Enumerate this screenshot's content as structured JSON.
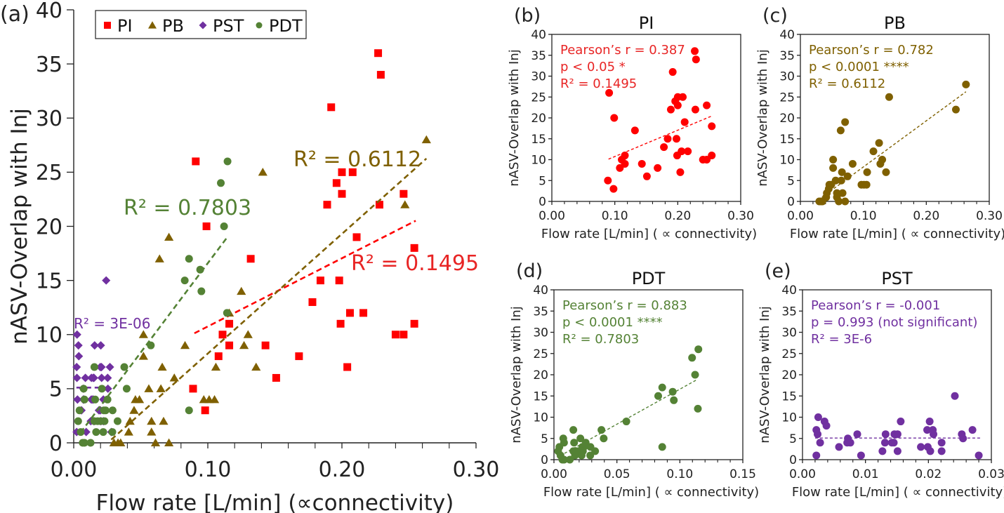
{
  "colors": {
    "PI": "#FF0000",
    "PI_text": "#E82525",
    "PB": "#7F6000",
    "PST": "#7030A0",
    "PDT": "#548235",
    "axis": "#222222"
  },
  "chart_data": [
    {
      "id": "a",
      "type": "scatter",
      "panel_label": "(a)",
      "title": "",
      "xlabel": "Flow rate [L/min] (∝connectivity)",
      "ylabel": "nASV-Overlap with Inj",
      "xlim": [
        0,
        0.3
      ],
      "ylim": [
        0,
        40
      ],
      "xticks": [
        0.0,
        0.1,
        0.2,
        0.3
      ],
      "xtick_labels": [
        "0.00",
        "0.10",
        "0.20",
        "0.30"
      ],
      "yticks": [
        0,
        5,
        10,
        15,
        20,
        25,
        30,
        35,
        40
      ],
      "ytick_labels": [
        "0",
        "5",
        "10",
        "15",
        "20",
        "25",
        "30",
        "35",
        "40"
      ],
      "grid": false,
      "legend": {
        "position": "top-left",
        "entries": [
          "PI",
          "PB",
          "PST",
          "PDT"
        ]
      },
      "series_refs": [
        "PI",
        "PB",
        "PST",
        "PDT"
      ],
      "annotations": [
        {
          "series": "PI",
          "text": "R² = 0.1495"
        },
        {
          "series": "PB",
          "text": "R² = 0.6112"
        },
        {
          "series": "PDT",
          "text": "R² = 0.7803"
        },
        {
          "series": "PST",
          "text": "R² = 3E-06"
        }
      ]
    },
    {
      "id": "b",
      "type": "scatter",
      "panel_label": "(b)",
      "title": "PI",
      "xlabel": "Flow rate [L/min] ( ∝ connectivity)",
      "ylabel": "nASV-Overlap with Inj",
      "xlim": [
        0,
        0.3
      ],
      "ylim": [
        0,
        40
      ],
      "xticks": [
        0.0,
        0.1,
        0.2,
        0.3
      ],
      "xtick_labels": [
        "0.00",
        "0.10",
        "0.20",
        "0.30"
      ],
      "yticks": [
        0,
        5,
        10,
        15,
        20,
        25,
        30,
        35,
        40
      ],
      "ytick_labels": [
        "0",
        "5",
        "10",
        "15",
        "20",
        "25",
        "30",
        "35",
        "40"
      ],
      "grid": false,
      "series_refs": [
        "PI"
      ],
      "stats": [
        "Pearson’s r = 0.387",
        "p < 0.05 *",
        "R² = 0.1495"
      ]
    },
    {
      "id": "c",
      "type": "scatter",
      "panel_label": "(c)",
      "title": "PB",
      "xlabel": "Flow rate [L/min] ( ∝ connectivity)",
      "ylabel": "nASV-Overlap with Inj",
      "xlim": [
        0,
        0.3
      ],
      "ylim": [
        0,
        40
      ],
      "xticks": [
        0.0,
        0.1,
        0.2,
        0.3
      ],
      "xtick_labels": [
        "0.00",
        "0.10",
        "0.20",
        "0.30"
      ],
      "yticks": [
        0,
        5,
        10,
        15,
        20,
        25,
        30,
        35,
        40
      ],
      "ytick_labels": [
        "0",
        "5",
        "10",
        "15",
        "20",
        "25",
        "30",
        "35",
        "40"
      ],
      "grid": false,
      "series_refs": [
        "PB"
      ],
      "stats": [
        "Pearson’s r = 0.782",
        "p < 0.0001 ****",
        "R² = 0.6112"
      ]
    },
    {
      "id": "d",
      "type": "scatter",
      "panel_label": "(d)",
      "title": "PDT",
      "xlabel": "Flow rate [L/min] ( ∝ connectivity)",
      "ylabel": "nASV-Overlap with Inj",
      "xlim": [
        0,
        0.15
      ],
      "ylim": [
        0,
        40
      ],
      "xticks": [
        0.0,
        0.05,
        0.1,
        0.15
      ],
      "xtick_labels": [
        "0.00",
        "0.05",
        "0.10",
        "0.15"
      ],
      "yticks": [
        0,
        5,
        10,
        15,
        20,
        25,
        30,
        35,
        40
      ],
      "ytick_labels": [
        "0",
        "5",
        "10",
        "15",
        "20",
        "25",
        "30",
        "35",
        "40"
      ],
      "grid": false,
      "series_refs": [
        "PDT"
      ],
      "stats": [
        "Pearson’s r = 0.883",
        "p < 0.0001 ****",
        "R² = 0.7803"
      ]
    },
    {
      "id": "e",
      "type": "scatter",
      "panel_label": "(e)",
      "title": "PST",
      "xlabel": "Flow rate [L/min] ( ∝ connectivity)",
      "ylabel": "nASV-Overlap with Inj",
      "xlim": [
        0,
        0.03
      ],
      "ylim": [
        0,
        40
      ],
      "xticks": [
        0.0,
        0.01,
        0.02,
        0.03
      ],
      "xtick_labels": [
        "0.00",
        "0.01",
        "0.02",
        "0.03"
      ],
      "yticks": [
        0,
        5,
        10,
        15,
        20,
        25,
        30,
        35,
        40
      ],
      "ytick_labels": [
        "0",
        "5",
        "10",
        "15",
        "20",
        "25",
        "30",
        "35",
        "40"
      ],
      "grid": false,
      "series_refs": [
        "PST"
      ],
      "stats": [
        "Pearson’s r = -0.001",
        "p = 0.993 (not significant)",
        "R² = 3E-6"
      ]
    }
  ],
  "series": {
    "PI": {
      "name": "PI",
      "marker": "square",
      "trend": {
        "slope": 63.0,
        "intercept": 4.45,
        "x_range": [
          0.09,
          0.255
        ],
        "r2": 0.1495
      },
      "points": [
        [
          0.089,
          5
        ],
        [
          0.098,
          3
        ],
        [
          0.091,
          26
        ],
        [
          0.099,
          20
        ],
        [
          0.108,
          8
        ],
        [
          0.111,
          10
        ],
        [
          0.116,
          11
        ],
        [
          0.116,
          9
        ],
        [
          0.132,
          17
        ],
        [
          0.143,
          9
        ],
        [
          0.151,
          6
        ],
        [
          0.168,
          8
        ],
        [
          0.178,
          13
        ],
        [
          0.184,
          15
        ],
        [
          0.189,
          22
        ],
        [
          0.192,
          31
        ],
        [
          0.196,
          24
        ],
        [
          0.198,
          15
        ],
        [
          0.199,
          11
        ],
        [
          0.2,
          25
        ],
        [
          0.2,
          23
        ],
        [
          0.206,
          12
        ],
        [
          0.204,
          7
        ],
        [
          0.208,
          25
        ],
        [
          0.211,
          19
        ],
        [
          0.216,
          12
        ],
        [
          0.227,
          36
        ],
        [
          0.229,
          34
        ],
        [
          0.228,
          22
        ],
        [
          0.24,
          10
        ],
        [
          0.246,
          10
        ],
        [
          0.246,
          23
        ],
        [
          0.254,
          18
        ],
        [
          0.254,
          11
        ]
      ]
    },
    "PB": {
      "name": "PB",
      "marker": "triangle",
      "trend": {
        "slope": 110.5,
        "intercept": -2.8,
        "x_range": [
          0.028,
          0.263
        ],
        "r2": 0.6112
      },
      "points": [
        [
          0.03,
          0
        ],
        [
          0.033,
          0
        ],
        [
          0.035,
          0
        ],
        [
          0.041,
          1
        ],
        [
          0.042,
          2
        ],
        [
          0.045,
          3
        ],
        [
          0.046,
          4
        ],
        [
          0.049,
          4
        ],
        [
          0.052,
          10
        ],
        [
          0.052,
          8
        ],
        [
          0.056,
          5
        ],
        [
          0.058,
          2
        ],
        [
          0.058,
          1
        ],
        [
          0.061,
          0
        ],
        [
          0.064,
          17
        ],
        [
          0.065,
          5
        ],
        [
          0.066,
          7
        ],
        [
          0.067,
          2
        ],
        [
          0.071,
          19
        ],
        [
          0.071,
          0
        ],
        [
          0.075,
          6
        ],
        [
          0.083,
          9
        ],
        [
          0.097,
          4
        ],
        [
          0.101,
          4
        ],
        [
          0.105,
          4
        ],
        [
          0.106,
          7
        ],
        [
          0.116,
          12
        ],
        [
          0.125,
          14
        ],
        [
          0.127,
          9
        ],
        [
          0.13,
          10
        ],
        [
          0.136,
          7
        ],
        [
          0.141,
          25
        ],
        [
          0.247,
          22
        ],
        [
          0.263,
          28
        ]
      ]
    },
    "PDT": {
      "name": "PDT",
      "marker": "circle",
      "trend": {
        "slope": 165.0,
        "intercept": 0.1,
        "x_range": [
          0.005,
          0.114
        ],
        "r2": 0.7803
      },
      "points": [
        [
          0.0033,
          2
        ],
        [
          0.0043,
          3
        ],
        [
          0.0074,
          5
        ],
        [
          0.008,
          4
        ],
        [
          0.0052,
          1
        ],
        [
          0.0067,
          0
        ],
        [
          0.008,
          0
        ],
        [
          0.0126,
          0
        ],
        [
          0.0154,
          7
        ],
        [
          0.016,
          4
        ],
        [
          0.0154,
          2
        ],
        [
          0.0167,
          1
        ],
        [
          0.0178,
          2
        ],
        [
          0.021,
          5
        ],
        [
          0.02,
          2
        ],
        [
          0.022,
          1
        ],
        [
          0.0225,
          3
        ],
        [
          0.0238,
          3
        ],
        [
          0.0252,
          4
        ],
        [
          0.023,
          2
        ],
        [
          0.029,
          3
        ],
        [
          0.0288,
          1
        ],
        [
          0.0327,
          2
        ],
        [
          0.0377,
          7
        ],
        [
          0.0395,
          5
        ],
        [
          0.0575,
          9
        ],
        [
          0.0828,
          15
        ],
        [
          0.086,
          17
        ],
        [
          0.086,
          3
        ],
        [
          0.0943,
          16
        ],
        [
          0.0952,
          14
        ],
        [
          0.1097,
          24
        ],
        [
          0.1121,
          20
        ],
        [
          0.1147,
          26
        ],
        [
          0.1143,
          12
        ]
      ]
    },
    "PST": {
      "name": "PST",
      "marker": "diamond",
      "trend": {
        "slope": 0.0,
        "intercept": 5.1,
        "x_range": [
          0.002,
          0.0285
        ],
        "r2": 3e-06
      },
      "points": [
        [
          0.0022,
          7
        ],
        [
          0.0024,
          6
        ],
        [
          0.0022,
          1
        ],
        [
          0.0025,
          10
        ],
        [
          0.0028,
          4
        ],
        [
          0.0035,
          9
        ],
        [
          0.0038,
          8
        ],
        [
          0.0058,
          3
        ],
        [
          0.0071,
          4
        ],
        [
          0.0072,
          5
        ],
        [
          0.0076,
          4
        ],
        [
          0.0087,
          6
        ],
        [
          0.0093,
          1
        ],
        [
          0.0127,
          2
        ],
        [
          0.0131,
          4
        ],
        [
          0.0132,
          6
        ],
        [
          0.0142,
          4
        ],
        [
          0.0145,
          4
        ],
        [
          0.0146,
          6
        ],
        [
          0.0151,
          6
        ],
        [
          0.0151,
          2
        ],
        [
          0.0156,
          9
        ],
        [
          0.0188,
          3
        ],
        [
          0.0198,
          7
        ],
        [
          0.0199,
          3
        ],
        [
          0.0202,
          9
        ],
        [
          0.0203,
          2
        ],
        [
          0.0207,
          7
        ],
        [
          0.0208,
          6
        ],
        [
          0.0221,
          4
        ],
        [
          0.0221,
          2
        ],
        [
          0.0242,
          15
        ],
        [
          0.0253,
          6
        ],
        [
          0.0255,
          5
        ],
        [
          0.027,
          7
        ],
        [
          0.028,
          1
        ]
      ]
    }
  }
}
